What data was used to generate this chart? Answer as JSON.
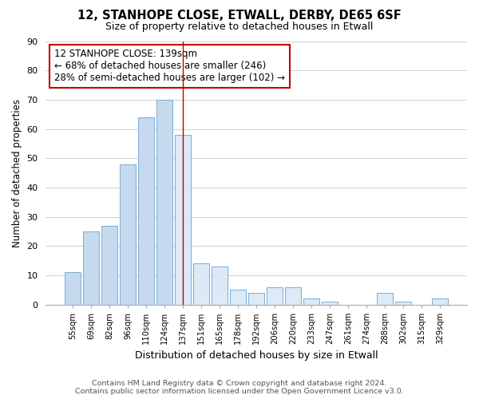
{
  "title": "12, STANHOPE CLOSE, ETWALL, DERBY, DE65 6SF",
  "subtitle": "Size of property relative to detached houses in Etwall",
  "xlabel": "Distribution of detached houses by size in Etwall",
  "ylabel": "Number of detached properties",
  "categories": [
    "55sqm",
    "69sqm",
    "82sqm",
    "96sqm",
    "110sqm",
    "124sqm",
    "137sqm",
    "151sqm",
    "165sqm",
    "178sqm",
    "192sqm",
    "206sqm",
    "220sqm",
    "233sqm",
    "247sqm",
    "261sqm",
    "274sqm",
    "288sqm",
    "302sqm",
    "315sqm",
    "329sqm"
  ],
  "values": [
    11,
    25,
    27,
    48,
    64,
    70,
    58,
    14,
    13,
    5,
    4,
    6,
    6,
    2,
    1,
    0,
    0,
    4,
    1,
    0,
    2
  ],
  "bar_color_normal": "#c5d9ef",
  "bar_color_highlight": "#dce9f7",
  "bar_edge_color": "#7aadd4",
  "marker_line_color": "#c00000",
  "marker_index": 6,
  "annotation_text": "12 STANHOPE CLOSE: 139sqm\n← 68% of detached houses are smaller (246)\n28% of semi-detached houses are larger (102) →",
  "annotation_box_color": "#ffffff",
  "annotation_box_edge": "#c00000",
  "ylim": [
    0,
    90
  ],
  "yticks": [
    0,
    10,
    20,
    30,
    40,
    50,
    60,
    70,
    80,
    90
  ],
  "footer_line1": "Contains HM Land Registry data © Crown copyright and database right 2024.",
  "footer_line2": "Contains public sector information licensed under the Open Government Licence v3.0.",
  "bg_color": "#ffffff",
  "grid_color": "#d0d0d0"
}
